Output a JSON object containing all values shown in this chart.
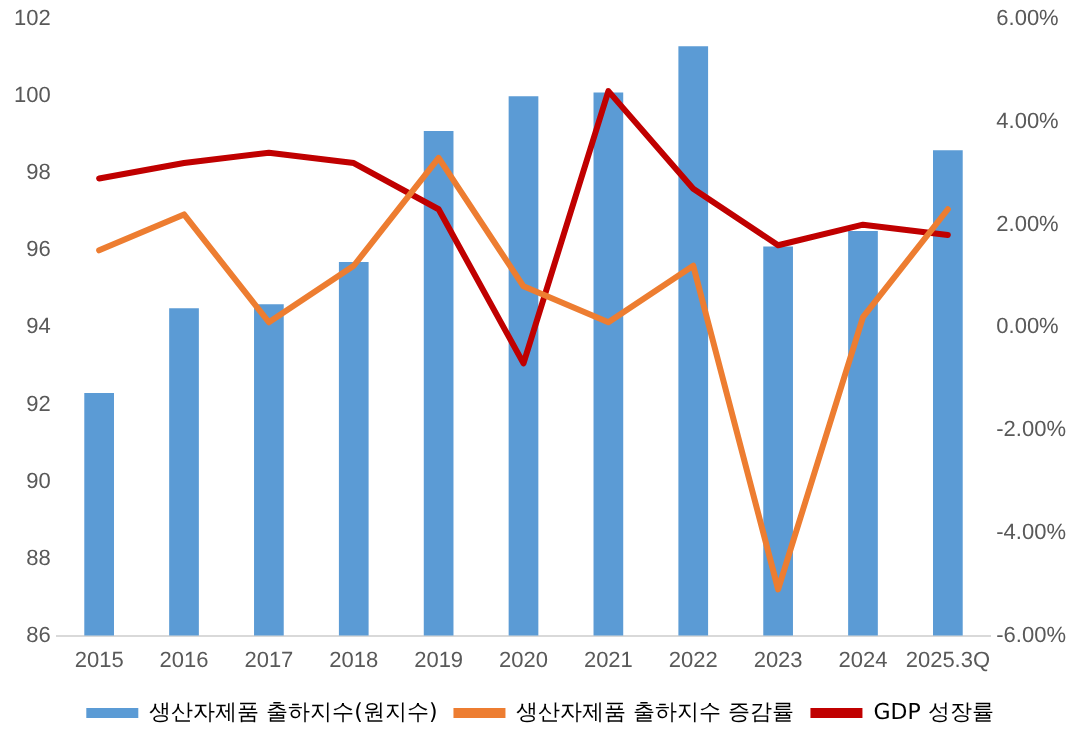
{
  "chart_data": {
    "type": "bar",
    "categories": [
      "2015",
      "2016",
      "2017",
      "2018",
      "2019",
      "2020",
      "2021",
      "2022",
      "2023",
      "2024",
      "2025.3Q"
    ],
    "series": [
      {
        "name": "생산자제품 출하지수(원지수)",
        "color": "#5b9bd5",
        "values": [
          92.3,
          94.5,
          94.6,
          95.7,
          99.1,
          100.0,
          100.1,
          101.3,
          96.1,
          96.5,
          98.6
        ]
      },
      {
        "name": "생산자제품 출하지수 증감률",
        "type": "line",
        "axis": "y2",
        "color": "#ed7d31",
        "values": [
          1.5,
          2.2,
          0.1,
          1.2,
          3.3,
          0.8,
          0.1,
          1.2,
          -5.1,
          0.2,
          2.3
        ]
      },
      {
        "name": "GDP 성장률",
        "type": "line",
        "axis": "y2",
        "color": "#c00000",
        "values": [
          2.9,
          3.2,
          3.4,
          3.2,
          2.3,
          -0.7,
          4.6,
          2.7,
          1.6,
          2.0,
          1.8
        ]
      }
    ],
    "ylim": [
      86,
      102
    ],
    "yticks": [
      86,
      88,
      90,
      92,
      94,
      96,
      98,
      100,
      102
    ],
    "y2lim": [
      -6,
      6
    ],
    "y2ticks": [
      {
        "value": -6,
        "label": "-6.00%"
      },
      {
        "value": -4,
        "label": "-4.00%"
      },
      {
        "value": -2,
        "label": "-2.00%"
      },
      {
        "value": 0,
        "label": "0.00%"
      },
      {
        "value": 2,
        "label": "2.00%"
      },
      {
        "value": 4,
        "label": "4.00%"
      },
      {
        "value": 6,
        "label": "6.00%"
      }
    ],
    "grid": false,
    "legend": "bottom",
    "marker": "none",
    "line_style": "solid"
  }
}
